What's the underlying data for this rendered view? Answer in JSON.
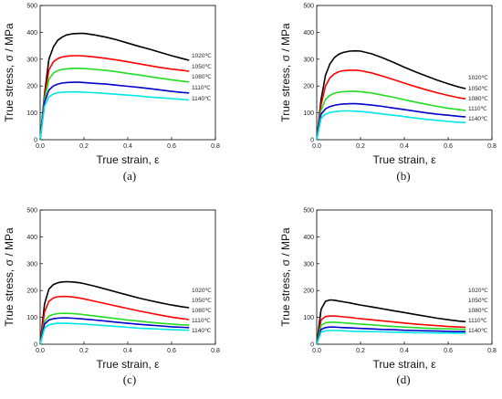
{
  "colors": {
    "1020": "#000000",
    "1050": "#ff0000",
    "1080": "#22dd22",
    "1110": "#0000cc",
    "1140": "#00e5e5"
  },
  "chart_data": [
    {
      "type": "line",
      "panel_label": "(a)",
      "xlabel": "True strain,  ε",
      "ylabel": "True stress, σ / MPa",
      "xlim": [
        0.0,
        0.8
      ],
      "ylim": [
        0,
        500
      ],
      "xticks": [
        "0.0",
        "0.2",
        "0.4",
        "0.6",
        "0.8"
      ],
      "yticks": [
        "0",
        "100",
        "200",
        "300",
        "400",
        "500"
      ],
      "grid": false,
      "legend_position": "right",
      "series": [
        {
          "name": "1020℃",
          "color": "#000000",
          "x": [
            0,
            0.02,
            0.04,
            0.06,
            0.08,
            0.1,
            0.12,
            0.15,
            0.18,
            0.2,
            0.25,
            0.3,
            0.35,
            0.4,
            0.45,
            0.5,
            0.55,
            0.6,
            0.65,
            0.68
          ],
          "y": [
            0,
            170,
            300,
            345,
            370,
            382,
            390,
            395,
            396,
            396,
            390,
            382,
            372,
            360,
            348,
            337,
            325,
            313,
            302,
            296
          ]
        },
        {
          "name": "1050℃",
          "color": "#ff0000",
          "x": [
            0,
            0.02,
            0.04,
            0.06,
            0.08,
            0.1,
            0.12,
            0.15,
            0.18,
            0.2,
            0.25,
            0.3,
            0.35,
            0.4,
            0.45,
            0.5,
            0.55,
            0.6,
            0.65,
            0.68
          ],
          "y": [
            0,
            160,
            260,
            290,
            302,
            308,
            311,
            313,
            313,
            312,
            308,
            303,
            297,
            290,
            283,
            276,
            269,
            263,
            258,
            255
          ]
        },
        {
          "name": "1080℃",
          "color": "#22dd22",
          "x": [
            0,
            0.02,
            0.04,
            0.06,
            0.08,
            0.1,
            0.12,
            0.15,
            0.18,
            0.2,
            0.25,
            0.3,
            0.35,
            0.4,
            0.45,
            0.5,
            0.55,
            0.6,
            0.65,
            0.68
          ],
          "y": [
            0,
            150,
            225,
            248,
            257,
            262,
            264,
            266,
            266,
            265,
            262,
            258,
            253,
            247,
            241,
            235,
            229,
            223,
            218,
            215
          ]
        },
        {
          "name": "1110℃",
          "color": "#0000cc",
          "x": [
            0,
            0.02,
            0.04,
            0.06,
            0.08,
            0.1,
            0.12,
            0.15,
            0.18,
            0.2,
            0.25,
            0.3,
            0.35,
            0.4,
            0.45,
            0.5,
            0.55,
            0.6,
            0.65,
            0.68
          ],
          "y": [
            0,
            140,
            185,
            200,
            207,
            211,
            213,
            214,
            214,
            213,
            210,
            207,
            203,
            199,
            195,
            190,
            185,
            180,
            176,
            174
          ]
        },
        {
          "name": "1140℃",
          "color": "#00e5e5",
          "x": [
            0,
            0.02,
            0.04,
            0.06,
            0.08,
            0.1,
            0.12,
            0.15,
            0.18,
            0.2,
            0.25,
            0.3,
            0.35,
            0.4,
            0.45,
            0.5,
            0.55,
            0.6,
            0.65,
            0.68
          ],
          "y": [
            0,
            125,
            160,
            170,
            175,
            177,
            178,
            178,
            178,
            177,
            175,
            172,
            169,
            166,
            163,
            159,
            156,
            153,
            150,
            148
          ]
        }
      ]
    },
    {
      "type": "line",
      "panel_label": "(b)",
      "xlabel": "True strain,  ε",
      "ylabel": "True stress, σ / MPa",
      "xlim": [
        0.0,
        0.8
      ],
      "ylim": [
        0,
        500
      ],
      "xticks": [
        "0.0",
        "0.2",
        "0.4",
        "0.6",
        "0.8"
      ],
      "yticks": [
        "0",
        "100",
        "200",
        "300",
        "400",
        "500"
      ],
      "grid": false,
      "legend_position": "right",
      "series": [
        {
          "name": "1020℃",
          "color": "#000000",
          "x": [
            0,
            0.02,
            0.04,
            0.06,
            0.08,
            0.1,
            0.12,
            0.15,
            0.18,
            0.2,
            0.25,
            0.3,
            0.35,
            0.4,
            0.45,
            0.5,
            0.55,
            0.6,
            0.65,
            0.68
          ],
          "y": [
            0,
            150,
            240,
            282,
            305,
            318,
            325,
            330,
            331,
            330,
            320,
            305,
            288,
            270,
            253,
            237,
            222,
            208,
            196,
            190
          ]
        },
        {
          "name": "1050℃",
          "color": "#ff0000",
          "x": [
            0,
            0.02,
            0.04,
            0.06,
            0.08,
            0.1,
            0.12,
            0.15,
            0.18,
            0.2,
            0.25,
            0.3,
            0.35,
            0.4,
            0.45,
            0.5,
            0.55,
            0.6,
            0.65,
            0.68
          ],
          "y": [
            0,
            130,
            200,
            230,
            245,
            253,
            257,
            259,
            259,
            257,
            249,
            237,
            224,
            211,
            198,
            186,
            175,
            165,
            156,
            152
          ]
        },
        {
          "name": "1080℃",
          "color": "#22dd22",
          "x": [
            0,
            0.02,
            0.04,
            0.06,
            0.08,
            0.1,
            0.12,
            0.15,
            0.18,
            0.2,
            0.25,
            0.3,
            0.35,
            0.4,
            0.45,
            0.5,
            0.55,
            0.6,
            0.65,
            0.68
          ],
          "y": [
            0,
            110,
            150,
            165,
            173,
            177,
            179,
            180,
            180,
            179,
            174,
            166,
            158,
            149,
            140,
            132,
            124,
            117,
            112,
            109
          ]
        },
        {
          "name": "1110℃",
          "color": "#0000cc",
          "x": [
            0,
            0.02,
            0.04,
            0.06,
            0.08,
            0.1,
            0.12,
            0.15,
            0.18,
            0.2,
            0.25,
            0.3,
            0.35,
            0.4,
            0.45,
            0.5,
            0.55,
            0.6,
            0.65,
            0.68
          ],
          "y": [
            0,
            95,
            115,
            123,
            128,
            131,
            133,
            134,
            134,
            133,
            129,
            124,
            118,
            112,
            106,
            100,
            95,
            91,
            87,
            85
          ]
        },
        {
          "name": "1140℃",
          "color": "#00e5e5",
          "x": [
            0,
            0.02,
            0.04,
            0.06,
            0.08,
            0.1,
            0.12,
            0.15,
            0.18,
            0.2,
            0.25,
            0.3,
            0.35,
            0.4,
            0.45,
            0.5,
            0.55,
            0.6,
            0.65,
            0.68
          ],
          "y": [
            0,
            80,
            95,
            101,
            104,
            106,
            107,
            107,
            106,
            105,
            101,
            96,
            91,
            86,
            81,
            76,
            72,
            68,
            65,
            64
          ]
        }
      ]
    },
    {
      "type": "line",
      "panel_label": "(c)",
      "xlabel": "True strain,  ε",
      "ylabel": "True stress, σ / MPa",
      "xlim": [
        0.0,
        0.8
      ],
      "ylim": [
        0,
        500
      ],
      "xticks": [
        "0.0",
        "0.2",
        "0.4",
        "0.6",
        "0.8"
      ],
      "yticks": [
        "0",
        "100",
        "200",
        "300",
        "400",
        "500"
      ],
      "grid": false,
      "legend_position": "right",
      "series": [
        {
          "name": "1020℃",
          "color": "#000000",
          "x": [
            0,
            0.02,
            0.04,
            0.06,
            0.08,
            0.1,
            0.12,
            0.15,
            0.18,
            0.2,
            0.25,
            0.3,
            0.35,
            0.4,
            0.45,
            0.5,
            0.55,
            0.6,
            0.65,
            0.68
          ],
          "y": [
            0,
            150,
            205,
            222,
            229,
            232,
            233,
            232,
            229,
            226,
            216,
            205,
            194,
            183,
            172,
            163,
            154,
            146,
            139,
            136
          ]
        },
        {
          "name": "1050℃",
          "color": "#ff0000",
          "x": [
            0,
            0.02,
            0.04,
            0.06,
            0.08,
            0.1,
            0.12,
            0.15,
            0.18,
            0.2,
            0.25,
            0.3,
            0.35,
            0.4,
            0.45,
            0.5,
            0.55,
            0.6,
            0.65,
            0.68
          ],
          "y": [
            0,
            120,
            160,
            172,
            177,
            178,
            178,
            176,
            172,
            169,
            160,
            151,
            142,
            133,
            124,
            116,
            108,
            101,
            95,
            92
          ]
        },
        {
          "name": "1080℃",
          "color": "#22dd22",
          "x": [
            0,
            0.02,
            0.04,
            0.06,
            0.08,
            0.1,
            0.12,
            0.15,
            0.18,
            0.2,
            0.25,
            0.3,
            0.35,
            0.4,
            0.45,
            0.5,
            0.55,
            0.6,
            0.65,
            0.68
          ],
          "y": [
            0,
            85,
            105,
            111,
            114,
            115,
            115,
            114,
            112,
            110,
            105,
            100,
            95,
            90,
            86,
            82,
            78,
            75,
            72,
            71
          ]
        },
        {
          "name": "1110℃",
          "color": "#0000cc",
          "x": [
            0,
            0.02,
            0.04,
            0.06,
            0.08,
            0.1,
            0.12,
            0.15,
            0.18,
            0.2,
            0.25,
            0.3,
            0.35,
            0.4,
            0.45,
            0.5,
            0.55,
            0.6,
            0.65,
            0.68
          ],
          "y": [
            0,
            75,
            90,
            95,
            97,
            98,
            98,
            97,
            95,
            94,
            90,
            86,
            82,
            78,
            74,
            71,
            68,
            65,
            63,
            62
          ]
        },
        {
          "name": "1140℃",
          "color": "#00e5e5",
          "x": [
            0,
            0.02,
            0.04,
            0.06,
            0.08,
            0.1,
            0.12,
            0.15,
            0.18,
            0.2,
            0.25,
            0.3,
            0.35,
            0.4,
            0.45,
            0.5,
            0.55,
            0.6,
            0.65,
            0.68
          ],
          "y": [
            0,
            60,
            72,
            76,
            78,
            78,
            78,
            77,
            76,
            75,
            72,
            69,
            66,
            63,
            60,
            58,
            56,
            54,
            53,
            52
          ]
        }
      ]
    },
    {
      "type": "line",
      "panel_label": "(d)",
      "xlabel": "True strain,  ε",
      "ylabel": "True stress, σ / MPa",
      "xlim": [
        0.0,
        0.8
      ],
      "ylim": [
        0,
        500
      ],
      "xticks": [
        "0.0",
        "0.2",
        "0.4",
        "0.6",
        "0.8"
      ],
      "yticks": [
        "0",
        "100",
        "200",
        "300",
        "400",
        "500"
      ],
      "grid": false,
      "legend_position": "right",
      "series": [
        {
          "name": "1020℃",
          "color": "#000000",
          "x": [
            0,
            0.02,
            0.04,
            0.06,
            0.08,
            0.1,
            0.12,
            0.15,
            0.18,
            0.2,
            0.25,
            0.3,
            0.35,
            0.4,
            0.45,
            0.5,
            0.55,
            0.6,
            0.65,
            0.68
          ],
          "y": [
            0,
            130,
            160,
            165,
            164,
            161,
            158,
            154,
            149,
            146,
            139,
            132,
            125,
            118,
            111,
            104,
            97,
            91,
            86,
            84
          ]
        },
        {
          "name": "1050℃",
          "color": "#ff0000",
          "x": [
            0,
            0.02,
            0.04,
            0.06,
            0.08,
            0.1,
            0.12,
            0.15,
            0.18,
            0.2,
            0.25,
            0.3,
            0.35,
            0.4,
            0.45,
            0.5,
            0.55,
            0.6,
            0.65,
            0.68
          ],
          "y": [
            0,
            90,
            103,
            105,
            105,
            104,
            102,
            100,
            97,
            95,
            91,
            87,
            83,
            79,
            75,
            72,
            69,
            66,
            64,
            63
          ]
        },
        {
          "name": "1080℃",
          "color": "#22dd22",
          "x": [
            0,
            0.02,
            0.04,
            0.06,
            0.08,
            0.1,
            0.12,
            0.15,
            0.18,
            0.2,
            0.25,
            0.3,
            0.35,
            0.4,
            0.45,
            0.5,
            0.55,
            0.6,
            0.65,
            0.68
          ],
          "y": [
            0,
            70,
            80,
            82,
            82,
            81,
            80,
            78,
            76,
            75,
            72,
            69,
            66,
            64,
            62,
            60,
            58,
            57,
            56,
            55
          ]
        },
        {
          "name": "1110℃",
          "color": "#0000cc",
          "x": [
            0,
            0.02,
            0.04,
            0.06,
            0.08,
            0.1,
            0.12,
            0.15,
            0.18,
            0.2,
            0.25,
            0.3,
            0.35,
            0.4,
            0.45,
            0.5,
            0.55,
            0.6,
            0.65,
            0.68
          ],
          "y": [
            0,
            55,
            62,
            64,
            64,
            63,
            62,
            61,
            60,
            59,
            57,
            55,
            54,
            52,
            51,
            50,
            49,
            48,
            47,
            47
          ]
        },
        {
          "name": "1140℃",
          "color": "#00e5e5",
          "x": [
            0,
            0.02,
            0.04,
            0.06,
            0.08,
            0.1,
            0.12,
            0.15,
            0.18,
            0.2,
            0.25,
            0.3,
            0.35,
            0.4,
            0.45,
            0.5,
            0.55,
            0.6,
            0.65,
            0.68
          ],
          "y": [
            0,
            45,
            50,
            51,
            51,
            51,
            50,
            49,
            48,
            48,
            47,
            46,
            45,
            44,
            43,
            43,
            42,
            42,
            41,
            41
          ]
        }
      ]
    }
  ]
}
